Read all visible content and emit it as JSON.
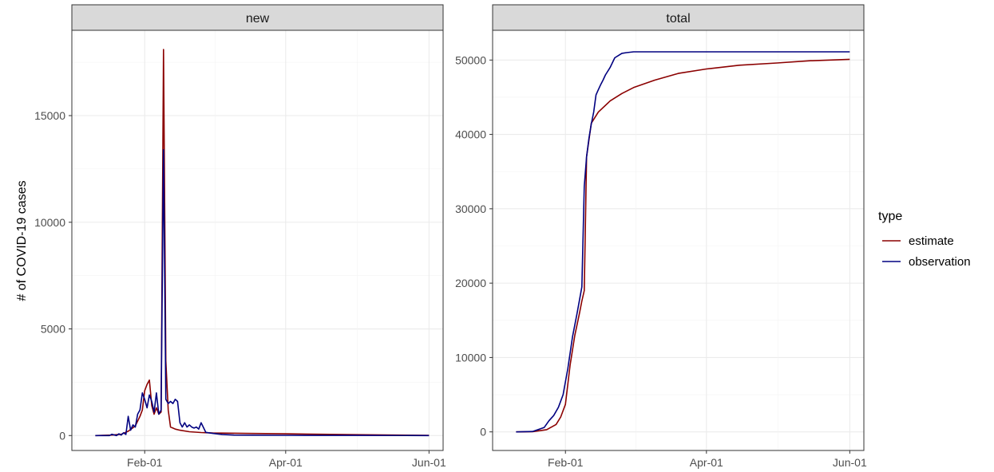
{
  "chart_data": {
    "type": "line",
    "ylabel": "# of COVID-19 cases",
    "x_ticks": [
      "Feb-01",
      "Apr-01",
      "Jun-01"
    ],
    "legend": {
      "title": "type",
      "position": "right"
    },
    "colors": {
      "estimate": "#8b0000",
      "observation": "#000080"
    },
    "grid": true,
    "panels": [
      {
        "name": "new",
        "ylim": [
          -700,
          19000
        ],
        "y_ticks": [
          "0",
          "5000",
          "10000",
          "15000"
        ],
        "series": [
          {
            "name": "estimate",
            "x": [
              "2020-01-11",
              "2020-01-18",
              "2020-01-22",
              "2020-01-25",
              "2020-01-28",
              "2020-01-30",
              "2020-01-31",
              "2020-02-01",
              "2020-02-02",
              "2020-02-03",
              "2020-02-04",
              "2020-02-05",
              "2020-02-06",
              "2020-02-07",
              "2020-02-08",
              "2020-02-09",
              "2020-02-10",
              "2020-02-11",
              "2020-02-12",
              "2020-02-13",
              "2020-02-14",
              "2020-02-16",
              "2020-02-20",
              "2020-02-25",
              "2020-03-01",
              "2020-03-15",
              "2020-04-01",
              "2020-05-01",
              "2020-06-01"
            ],
            "y": [
              0,
              20,
              60,
              200,
              450,
              900,
              1200,
              2100,
              2400,
              2600,
              1400,
              1000,
              1300,
              1000,
              1100,
              18100,
              3500,
              1200,
              400,
              350,
              300,
              250,
              180,
              140,
              120,
              100,
              80,
              40,
              10
            ]
          },
          {
            "name": "observation",
            "x": [
              "2020-01-11",
              "2020-01-15",
              "2020-01-17",
              "2020-01-18",
              "2020-01-20",
              "2020-01-21",
              "2020-01-22",
              "2020-01-23",
              "2020-01-24",
              "2020-01-25",
              "2020-01-26",
              "2020-01-27",
              "2020-01-28",
              "2020-01-29",
              "2020-01-30",
              "2020-01-31",
              "2020-02-01",
              "2020-02-02",
              "2020-02-03",
              "2020-02-04",
              "2020-02-05",
              "2020-02-06",
              "2020-02-07",
              "2020-02-08",
              "2020-02-09",
              "2020-02-10",
              "2020-02-11",
              "2020-02-12",
              "2020-02-13",
              "2020-02-14",
              "2020-02-15",
              "2020-02-16",
              "2020-02-17",
              "2020-02-18",
              "2020-02-19",
              "2020-02-20",
              "2020-02-21",
              "2020-02-22",
              "2020-02-23",
              "2020-02-24",
              "2020-02-25",
              "2020-02-27",
              "2020-03-01",
              "2020-03-05",
              "2020-03-10",
              "2020-04-01",
              "2020-05-01",
              "2020-06-01"
            ],
            "y": [
              0,
              0,
              0,
              60,
              0,
              80,
              20,
              130,
              50,
              900,
              250,
              500,
              400,
              1000,
              1200,
              2000,
              1700,
              1300,
              1900,
              1600,
              1100,
              2000,
              1000,
              1200,
              13400,
              1700,
              1500,
              1600,
              1500,
              1700,
              1600,
              600,
              400,
              600,
              400,
              500,
              400,
              350,
              400,
              300,
              600,
              150,
              100,
              50,
              20,
              10,
              5,
              0
            ]
          }
        ]
      },
      {
        "name": "total",
        "ylim": [
          -2500,
          54000
        ],
        "y_ticks": [
          "0",
          "10000",
          "20000",
          "30000",
          "40000",
          "50000"
        ],
        "series": [
          {
            "name": "estimate",
            "x": [
              "2020-01-11",
              "2020-01-18",
              "2020-01-24",
              "2020-01-28",
              "2020-01-30",
              "2020-02-01",
              "2020-02-03",
              "2020-02-05",
              "2020-02-07",
              "2020-02-08",
              "2020-02-09",
              "2020-02-10",
              "2020-02-12",
              "2020-02-15",
              "2020-02-20",
              "2020-02-25",
              "2020-03-01",
              "2020-03-10",
              "2020-03-20",
              "2020-04-01",
              "2020-04-15",
              "2020-05-01",
              "2020-05-15",
              "2020-06-01"
            ],
            "y": [
              0,
              30,
              300,
              1000,
              2000,
              3700,
              9000,
              13000,
              16000,
              17600,
              19000,
              37000,
              41500,
              43000,
              44500,
              45500,
              46300,
              47300,
              48200,
              48800,
              49300,
              49600,
              49900,
              50100
            ]
          },
          {
            "name": "observation",
            "x": [
              "2020-01-11",
              "2020-01-18",
              "2020-01-23",
              "2020-01-25",
              "2020-01-27",
              "2020-01-29",
              "2020-01-31",
              "2020-02-02",
              "2020-02-04",
              "2020-02-06",
              "2020-02-08",
              "2020-02-09",
              "2020-02-10",
              "2020-02-11",
              "2020-02-12",
              "2020-02-13",
              "2020-02-14",
              "2020-02-15",
              "2020-02-16",
              "2020-02-17",
              "2020-02-18",
              "2020-02-20",
              "2020-02-22",
              "2020-02-24",
              "2020-02-25",
              "2020-02-27",
              "2020-03-01",
              "2020-03-10",
              "2020-04-01",
              "2020-05-01",
              "2020-06-01"
            ],
            "y": [
              0,
              50,
              600,
              1500,
              2200,
              3300,
              5000,
              8500,
              12800,
              16000,
              19500,
              33000,
              37000,
              39500,
              41400,
              43000,
              45300,
              46000,
              46700,
              47300,
              48000,
              49000,
              50300,
              50700,
              50900,
              51000,
              51100,
              51100,
              51100,
              51100,
              51100
            ]
          }
        ]
      }
    ]
  }
}
